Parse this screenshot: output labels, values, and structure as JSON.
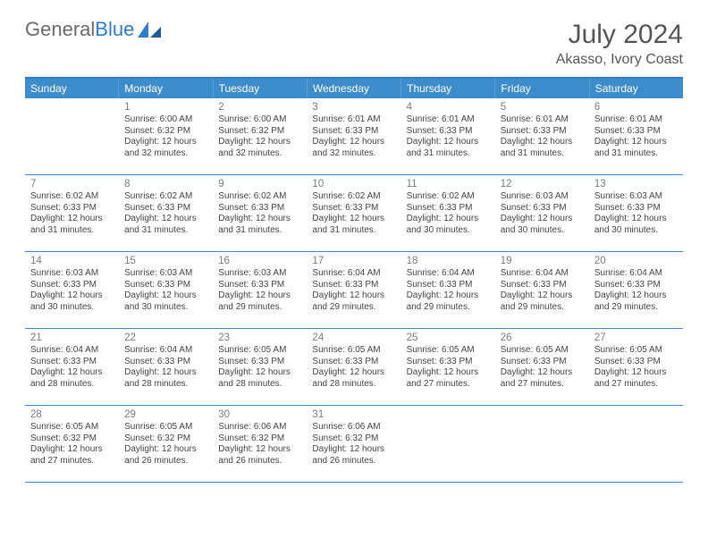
{
  "brand": {
    "part1": "General",
    "part2": "Blue"
  },
  "title": "July 2024",
  "location": "Akasso, Ivory Coast",
  "colors": {
    "header_bg": "#3d8ccc",
    "header_text": "#ffffff",
    "accent_border": "#2f7bcd",
    "row_border": "#3d8ccc",
    "text": "#444444",
    "daynum": "#7a7a7a"
  },
  "days_of_week": [
    "Sunday",
    "Monday",
    "Tuesday",
    "Wednesday",
    "Thursday",
    "Friday",
    "Saturday"
  ],
  "weeks": [
    [
      {
        "n": "",
        "l1": "",
        "l2": "",
        "l3": "",
        "l4": ""
      },
      {
        "n": "1",
        "l1": "Sunrise: 6:00 AM",
        "l2": "Sunset: 6:32 PM",
        "l3": "Daylight: 12 hours",
        "l4": "and 32 minutes."
      },
      {
        "n": "2",
        "l1": "Sunrise: 6:00 AM",
        "l2": "Sunset: 6:32 PM",
        "l3": "Daylight: 12 hours",
        "l4": "and 32 minutes."
      },
      {
        "n": "3",
        "l1": "Sunrise: 6:01 AM",
        "l2": "Sunset: 6:33 PM",
        "l3": "Daylight: 12 hours",
        "l4": "and 32 minutes."
      },
      {
        "n": "4",
        "l1": "Sunrise: 6:01 AM",
        "l2": "Sunset: 6:33 PM",
        "l3": "Daylight: 12 hours",
        "l4": "and 31 minutes."
      },
      {
        "n": "5",
        "l1": "Sunrise: 6:01 AM",
        "l2": "Sunset: 6:33 PM",
        "l3": "Daylight: 12 hours",
        "l4": "and 31 minutes."
      },
      {
        "n": "6",
        "l1": "Sunrise: 6:01 AM",
        "l2": "Sunset: 6:33 PM",
        "l3": "Daylight: 12 hours",
        "l4": "and 31 minutes."
      }
    ],
    [
      {
        "n": "7",
        "l1": "Sunrise: 6:02 AM",
        "l2": "Sunset: 6:33 PM",
        "l3": "Daylight: 12 hours",
        "l4": "and 31 minutes."
      },
      {
        "n": "8",
        "l1": "Sunrise: 6:02 AM",
        "l2": "Sunset: 6:33 PM",
        "l3": "Daylight: 12 hours",
        "l4": "and 31 minutes."
      },
      {
        "n": "9",
        "l1": "Sunrise: 6:02 AM",
        "l2": "Sunset: 6:33 PM",
        "l3": "Daylight: 12 hours",
        "l4": "and 31 minutes."
      },
      {
        "n": "10",
        "l1": "Sunrise: 6:02 AM",
        "l2": "Sunset: 6:33 PM",
        "l3": "Daylight: 12 hours",
        "l4": "and 31 minutes."
      },
      {
        "n": "11",
        "l1": "Sunrise: 6:02 AM",
        "l2": "Sunset: 6:33 PM",
        "l3": "Daylight: 12 hours",
        "l4": "and 30 minutes."
      },
      {
        "n": "12",
        "l1": "Sunrise: 6:03 AM",
        "l2": "Sunset: 6:33 PM",
        "l3": "Daylight: 12 hours",
        "l4": "and 30 minutes."
      },
      {
        "n": "13",
        "l1": "Sunrise: 6:03 AM",
        "l2": "Sunset: 6:33 PM",
        "l3": "Daylight: 12 hours",
        "l4": "and 30 minutes."
      }
    ],
    [
      {
        "n": "14",
        "l1": "Sunrise: 6:03 AM",
        "l2": "Sunset: 6:33 PM",
        "l3": "Daylight: 12 hours",
        "l4": "and 30 minutes."
      },
      {
        "n": "15",
        "l1": "Sunrise: 6:03 AM",
        "l2": "Sunset: 6:33 PM",
        "l3": "Daylight: 12 hours",
        "l4": "and 30 minutes."
      },
      {
        "n": "16",
        "l1": "Sunrise: 6:03 AM",
        "l2": "Sunset: 6:33 PM",
        "l3": "Daylight: 12 hours",
        "l4": "and 29 minutes."
      },
      {
        "n": "17",
        "l1": "Sunrise: 6:04 AM",
        "l2": "Sunset: 6:33 PM",
        "l3": "Daylight: 12 hours",
        "l4": "and 29 minutes."
      },
      {
        "n": "18",
        "l1": "Sunrise: 6:04 AM",
        "l2": "Sunset: 6:33 PM",
        "l3": "Daylight: 12 hours",
        "l4": "and 29 minutes."
      },
      {
        "n": "19",
        "l1": "Sunrise: 6:04 AM",
        "l2": "Sunset: 6:33 PM",
        "l3": "Daylight: 12 hours",
        "l4": "and 29 minutes."
      },
      {
        "n": "20",
        "l1": "Sunrise: 6:04 AM",
        "l2": "Sunset: 6:33 PM",
        "l3": "Daylight: 12 hours",
        "l4": "and 29 minutes."
      }
    ],
    [
      {
        "n": "21",
        "l1": "Sunrise: 6:04 AM",
        "l2": "Sunset: 6:33 PM",
        "l3": "Daylight: 12 hours",
        "l4": "and 28 minutes."
      },
      {
        "n": "22",
        "l1": "Sunrise: 6:04 AM",
        "l2": "Sunset: 6:33 PM",
        "l3": "Daylight: 12 hours",
        "l4": "and 28 minutes."
      },
      {
        "n": "23",
        "l1": "Sunrise: 6:05 AM",
        "l2": "Sunset: 6:33 PM",
        "l3": "Daylight: 12 hours",
        "l4": "and 28 minutes."
      },
      {
        "n": "24",
        "l1": "Sunrise: 6:05 AM",
        "l2": "Sunset: 6:33 PM",
        "l3": "Daylight: 12 hours",
        "l4": "and 28 minutes."
      },
      {
        "n": "25",
        "l1": "Sunrise: 6:05 AM",
        "l2": "Sunset: 6:33 PM",
        "l3": "Daylight: 12 hours",
        "l4": "and 27 minutes."
      },
      {
        "n": "26",
        "l1": "Sunrise: 6:05 AM",
        "l2": "Sunset: 6:33 PM",
        "l3": "Daylight: 12 hours",
        "l4": "and 27 minutes."
      },
      {
        "n": "27",
        "l1": "Sunrise: 6:05 AM",
        "l2": "Sunset: 6:33 PM",
        "l3": "Daylight: 12 hours",
        "l4": "and 27 minutes."
      }
    ],
    [
      {
        "n": "28",
        "l1": "Sunrise: 6:05 AM",
        "l2": "Sunset: 6:32 PM",
        "l3": "Daylight: 12 hours",
        "l4": "and 27 minutes."
      },
      {
        "n": "29",
        "l1": "Sunrise: 6:05 AM",
        "l2": "Sunset: 6:32 PM",
        "l3": "Daylight: 12 hours",
        "l4": "and 26 minutes."
      },
      {
        "n": "30",
        "l1": "Sunrise: 6:06 AM",
        "l2": "Sunset: 6:32 PM",
        "l3": "Daylight: 12 hours",
        "l4": "and 26 minutes."
      },
      {
        "n": "31",
        "l1": "Sunrise: 6:06 AM",
        "l2": "Sunset: 6:32 PM",
        "l3": "Daylight: 12 hours",
        "l4": "and 26 minutes."
      },
      {
        "n": "",
        "l1": "",
        "l2": "",
        "l3": "",
        "l4": ""
      },
      {
        "n": "",
        "l1": "",
        "l2": "",
        "l3": "",
        "l4": ""
      },
      {
        "n": "",
        "l1": "",
        "l2": "",
        "l3": "",
        "l4": ""
      }
    ]
  ]
}
